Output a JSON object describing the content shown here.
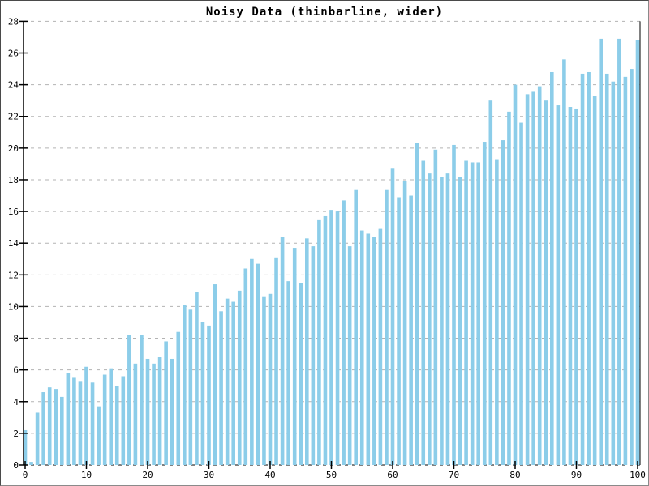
{
  "chart_data": {
    "type": "bar",
    "title": "Noisy Data (thinbarline, wider)",
    "xlabel": "",
    "ylabel": "",
    "xlim": [
      0,
      100
    ],
    "ylim": [
      0,
      28
    ],
    "x_ticks": [
      0,
      10,
      20,
      30,
      40,
      50,
      60,
      70,
      80,
      90,
      100
    ],
    "y_ticks": [
      0,
      2,
      4,
      6,
      8,
      10,
      12,
      14,
      16,
      18,
      20,
      22,
      24,
      26,
      28
    ],
    "grid": "horizontal-dashed",
    "legend": "none",
    "bar_color": "#8CCDE9",
    "gridline_color": "#b3b3b3",
    "axis_color": "#000000",
    "x": [
      0,
      1,
      2,
      3,
      4,
      5,
      6,
      7,
      8,
      9,
      10,
      11,
      12,
      13,
      14,
      15,
      16,
      17,
      18,
      19,
      20,
      21,
      22,
      23,
      24,
      25,
      26,
      27,
      28,
      29,
      30,
      31,
      32,
      33,
      34,
      35,
      36,
      37,
      38,
      39,
      40,
      41,
      42,
      43,
      44,
      45,
      46,
      47,
      48,
      49,
      50,
      51,
      52,
      53,
      54,
      55,
      56,
      57,
      58,
      59,
      60,
      61,
      62,
      63,
      64,
      65,
      66,
      67,
      68,
      69,
      70,
      71,
      72,
      73,
      74,
      75,
      76,
      77,
      78,
      79,
      80,
      81,
      82,
      83,
      84,
      85,
      86,
      87,
      88,
      89,
      90,
      91,
      92,
      93,
      94,
      95,
      96,
      97,
      98,
      99,
      100
    ],
    "values": [
      2.2,
      0.2,
      3.3,
      4.6,
      4.9,
      4.8,
      4.3,
      5.8,
      5.5,
      5.3,
      6.2,
      5.2,
      3.7,
      5.7,
      6.1,
      5.0,
      5.6,
      8.2,
      6.4,
      8.2,
      6.7,
      6.4,
      6.8,
      7.8,
      6.7,
      8.4,
      10.1,
      9.8,
      10.9,
      9.0,
      8.8,
      11.4,
      9.7,
      10.5,
      10.3,
      11.0,
      12.4,
      13.0,
      12.7,
      10.6,
      10.8,
      13.1,
      14.4,
      11.6,
      13.7,
      11.5,
      14.3,
      13.8,
      15.5,
      15.7,
      16.1,
      16.0,
      16.7,
      13.8,
      17.4,
      14.8,
      14.6,
      14.4,
      14.9,
      17.4,
      18.7,
      16.9,
      17.9,
      17.0,
      20.3,
      19.2,
      18.4,
      19.9,
      18.2,
      18.4,
      20.2,
      18.2,
      19.2,
      19.1,
      19.1,
      20.4,
      23.0,
      19.3,
      20.5,
      22.3,
      24.0,
      21.6,
      23.4,
      23.6,
      23.9,
      23.0,
      24.8,
      22.7,
      25.6,
      22.6,
      22.5,
      24.7,
      24.8,
      23.3,
      26.9,
      24.7,
      24.2,
      26.9,
      24.5,
      25.0,
      26.8
    ]
  }
}
